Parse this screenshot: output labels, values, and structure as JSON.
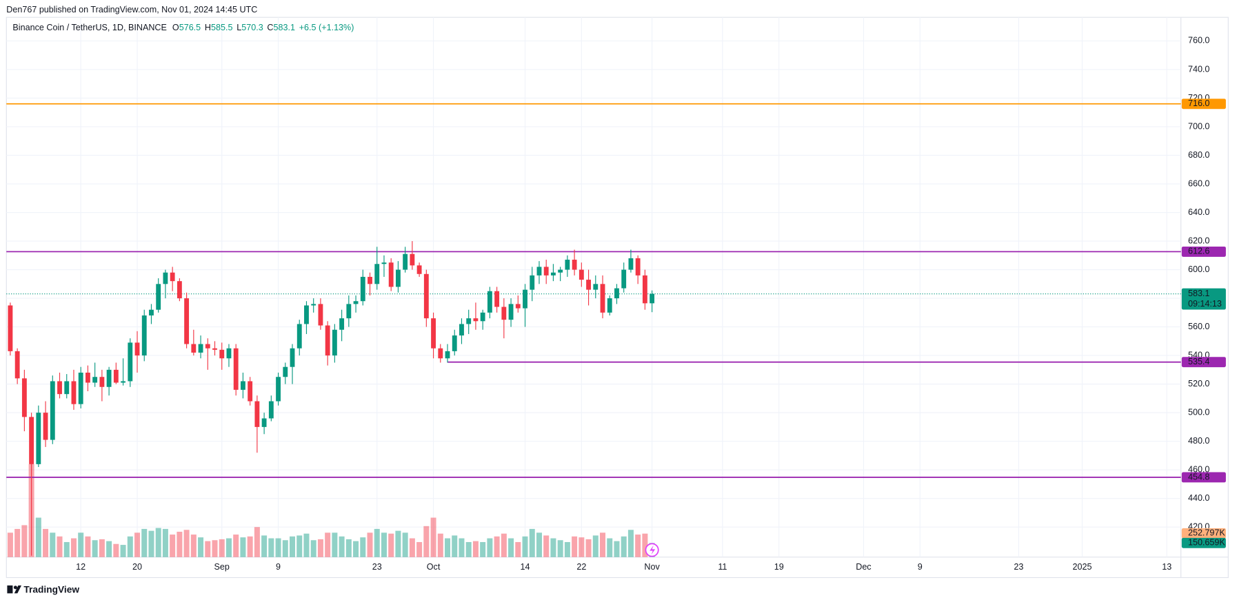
{
  "header": {
    "text": "Den767 published on TradingView.com, Nov 01, 2024 14:45 UTC"
  },
  "footer": {
    "brand": "TradingView"
  },
  "chart_data": {
    "type": "candlestick",
    "title": "Binance Coin / TetherUS, 1D, BINANCE",
    "legend_keys": [
      "O",
      "H",
      "L",
      "C"
    ],
    "change_label": "+6.5 (+1.13%)",
    "countdown": "09:14:13",
    "up_color": "#089981",
    "down_color": "#f23645",
    "grid": true,
    "x": [
      "2024-08-02",
      "2024-08-03",
      "2024-08-04",
      "2024-08-05",
      "2024-08-06",
      "2024-08-07",
      "2024-08-08",
      "2024-08-09",
      "2024-08-10",
      "2024-08-11",
      "2024-08-12",
      "2024-08-13",
      "2024-08-14",
      "2024-08-15",
      "2024-08-16",
      "2024-08-17",
      "2024-08-18",
      "2024-08-19",
      "2024-08-20",
      "2024-08-21",
      "2024-08-22",
      "2024-08-23",
      "2024-08-24",
      "2024-08-25",
      "2024-08-26",
      "2024-08-27",
      "2024-08-28",
      "2024-08-29",
      "2024-08-30",
      "2024-08-31",
      "2024-09-01",
      "2024-09-02",
      "2024-09-03",
      "2024-09-04",
      "2024-09-05",
      "2024-09-06",
      "2024-09-07",
      "2024-09-08",
      "2024-09-09",
      "2024-09-10",
      "2024-09-11",
      "2024-09-12",
      "2024-09-13",
      "2024-09-14",
      "2024-09-15",
      "2024-09-16",
      "2024-09-17",
      "2024-09-18",
      "2024-09-19",
      "2024-09-20",
      "2024-09-21",
      "2024-09-22",
      "2024-09-23",
      "2024-09-24",
      "2024-09-25",
      "2024-09-26",
      "2024-09-27",
      "2024-09-28",
      "2024-09-29",
      "2024-09-30",
      "2024-10-01",
      "2024-10-02",
      "2024-10-03",
      "2024-10-04",
      "2024-10-05",
      "2024-10-06",
      "2024-10-07",
      "2024-10-08",
      "2024-10-09",
      "2024-10-10",
      "2024-10-11",
      "2024-10-12",
      "2024-10-13",
      "2024-10-14",
      "2024-10-15",
      "2024-10-16",
      "2024-10-17",
      "2024-10-18",
      "2024-10-19",
      "2024-10-20",
      "2024-10-21",
      "2024-10-22",
      "2024-10-23",
      "2024-10-24",
      "2024-10-25",
      "2024-10-26",
      "2024-10-27",
      "2024-10-28",
      "2024-10-29",
      "2024-10-30",
      "2024-10-31",
      "2024-11-01"
    ],
    "open": [
      575,
      543,
      524,
      497,
      464,
      500,
      481,
      522,
      513,
      522,
      506,
      528,
      521,
      525,
      518,
      530,
      521,
      522,
      549,
      540,
      568,
      572,
      590,
      598,
      592,
      580,
      548,
      542,
      548,
      545,
      544,
      538,
      545,
      516,
      522,
      508,
      490,
      496,
      508,
      525,
      532,
      545,
      562,
      575,
      576,
      561,
      540,
      558,
      566,
      576,
      578,
      595,
      590,
      604,
      605,
      588,
      600,
      611,
      603,
      597,
      566,
      545,
      538,
      543,
      554,
      562,
      566,
      564,
      570,
      585,
      574,
      565,
      576,
      573,
      586,
      596,
      602,
      596,
      598,
      600,
      607,
      600,
      593,
      586,
      590,
      570,
      580,
      587,
      600,
      608,
      596,
      576.5
    ],
    "high": [
      577,
      545,
      530,
      500,
      505,
      508,
      526,
      528,
      527,
      530,
      532,
      533,
      535,
      530,
      532,
      535,
      538,
      552,
      557,
      572,
      576,
      594,
      600,
      602,
      594,
      584,
      558,
      554,
      552,
      550,
      549,
      548,
      548,
      528,
      525,
      512,
      500,
      512,
      528,
      535,
      548,
      565,
      578,
      580,
      580,
      564,
      562,
      572,
      582,
      582,
      600,
      598,
      616,
      610,
      608,
      606,
      616,
      620,
      605,
      600,
      570,
      548,
      548,
      558,
      566,
      572,
      577,
      572,
      588,
      588,
      580,
      580,
      582,
      590,
      602,
      606,
      607,
      604,
      602,
      610,
      614,
      605,
      600,
      596,
      596,
      582,
      590,
      605,
      614,
      610,
      600,
      585.5
    ],
    "low": [
      540,
      520,
      487,
      400,
      462,
      476,
      478,
      510,
      510,
      502,
      503,
      515,
      518,
      508,
      512,
      520,
      519,
      518,
      528,
      536,
      562,
      570,
      580,
      585,
      578,
      545,
      540,
      538,
      530,
      540,
      530,
      532,
      512,
      510,
      505,
      472,
      485,
      494,
      505,
      520,
      520,
      540,
      555,
      570,
      558,
      533,
      535,
      550,
      560,
      570,
      575,
      582,
      586,
      595,
      585,
      584,
      598,
      600,
      595,
      560,
      538,
      535,
      535,
      540,
      548,
      555,
      558,
      558,
      566,
      570,
      552,
      560,
      570,
      560,
      578,
      590,
      590,
      592,
      592,
      595,
      596,
      588,
      575,
      580,
      566,
      568,
      576,
      584,
      598,
      590,
      572,
      570.3
    ],
    "close": [
      543,
      524,
      497,
      464,
      500,
      481,
      522,
      513,
      522,
      506,
      528,
      521,
      525,
      518,
      530,
      521,
      522,
      549,
      540,
      568,
      572,
      590,
      598,
      592,
      580,
      548,
      542,
      548,
      545,
      544,
      538,
      545,
      516,
      522,
      508,
      490,
      496,
      508,
      525,
      532,
      545,
      562,
      575,
      576,
      561,
      540,
      558,
      566,
      576,
      578,
      595,
      590,
      604,
      605,
      588,
      600,
      611,
      603,
      597,
      566,
      545,
      538,
      543,
      554,
      562,
      566,
      564,
      570,
      585,
      574,
      565,
      576,
      573,
      586,
      596,
      602,
      596,
      598,
      600,
      607,
      600,
      593,
      586,
      590,
      570,
      580,
      587,
      600,
      608,
      596,
      576.5,
      583.1
    ],
    "volume": [
      260,
      300,
      340,
      990,
      420,
      300,
      260,
      220,
      160,
      200,
      260,
      220,
      180,
      190,
      170,
      140,
      130,
      220,
      260,
      300,
      280,
      310,
      300,
      240,
      270,
      290,
      240,
      210,
      170,
      180,
      190,
      200,
      240,
      210,
      220,
      320,
      230,
      200,
      200,
      180,
      220,
      230,
      250,
      180,
      190,
      260,
      260,
      220,
      190,
      170,
      210,
      260,
      300,
      260,
      250,
      280,
      260,
      200,
      160,
      330,
      420,
      250,
      200,
      230,
      200,
      160,
      170,
      160,
      200,
      220,
      250,
      200,
      160,
      220,
      300,
      260,
      230,
      200,
      180,
      160,
      220,
      210,
      190,
      230,
      260,
      200,
      170,
      220,
      290,
      240,
      250,
      150.659
    ],
    "volume_labels": [
      {
        "value": 252.797,
        "label": "252.797K",
        "color": "#ffb07c",
        "text_color": "#131722"
      },
      {
        "value": 150.659,
        "label": "150.659K",
        "color": "#089981",
        "text_color": "#ffffff"
      }
    ],
    "volume_lim": [
      0,
      1200
    ],
    "xlim": [
      "2024-08-01",
      "2025-01-15"
    ],
    "xticks": [
      {
        "value": "2024-08-12",
        "label": "12"
      },
      {
        "value": "2024-08-20",
        "label": "20"
      },
      {
        "value": "2024-09-01",
        "label": "Sep"
      },
      {
        "value": "2024-09-09",
        "label": "9"
      },
      {
        "value": "2024-09-23",
        "label": "23"
      },
      {
        "value": "2024-10-01",
        "label": "Oct"
      },
      {
        "value": "2024-10-14",
        "label": "14"
      },
      {
        "value": "2024-10-22",
        "label": "22"
      },
      {
        "value": "2024-11-01",
        "label": "Nov"
      },
      {
        "value": "2024-11-11",
        "label": "11"
      },
      {
        "value": "2024-11-19",
        "label": "19"
      },
      {
        "value": "2024-12-01",
        "label": "Dec"
      },
      {
        "value": "2024-12-09",
        "label": "9"
      },
      {
        "value": "2024-12-23",
        "label": "23"
      },
      {
        "value": "2025-01-01",
        "label": "2025"
      },
      {
        "value": "2025-01-13",
        "label": "13"
      }
    ],
    "ylim": [
      399,
      776.5
    ],
    "yticks": [
      {
        "value": 420,
        "label": "420.0"
      },
      {
        "value": 440,
        "label": "440.0"
      },
      {
        "value": 460,
        "label": "460.0"
      },
      {
        "value": 480,
        "label": "480.0"
      },
      {
        "value": 500,
        "label": "500.0"
      },
      {
        "value": 520,
        "label": "520.0"
      },
      {
        "value": 540,
        "label": "540.0"
      },
      {
        "value": 560,
        "label": "560.0"
      },
      {
        "value": 580,
        "label": "580.0"
      },
      {
        "value": 600,
        "label": "600.0"
      },
      {
        "value": 620,
        "label": "620.0"
      },
      {
        "value": 640,
        "label": "640.0"
      },
      {
        "value": 660,
        "label": "660.0"
      },
      {
        "value": 680,
        "label": "680.0"
      },
      {
        "value": 700,
        "label": "700.0"
      },
      {
        "value": 720,
        "label": "720.0"
      },
      {
        "value": 740,
        "label": "740.0"
      },
      {
        "value": 760,
        "label": "760.0"
      }
    ],
    "levels": [
      {
        "value": 716,
        "label": "716.0",
        "color": "#ff9800",
        "start": "2024-08-01"
      },
      {
        "value": 612.6,
        "label": "612.6",
        "color": "#9c27b0",
        "start": "2024-08-01"
      },
      {
        "value": 535.4,
        "label": "535.4",
        "color": "#9c27b0",
        "start": "2024-10-03"
      },
      {
        "value": 454.8,
        "label": "454.8",
        "color": "#9c27b0",
        "start": "2024-08-01"
      }
    ]
  }
}
